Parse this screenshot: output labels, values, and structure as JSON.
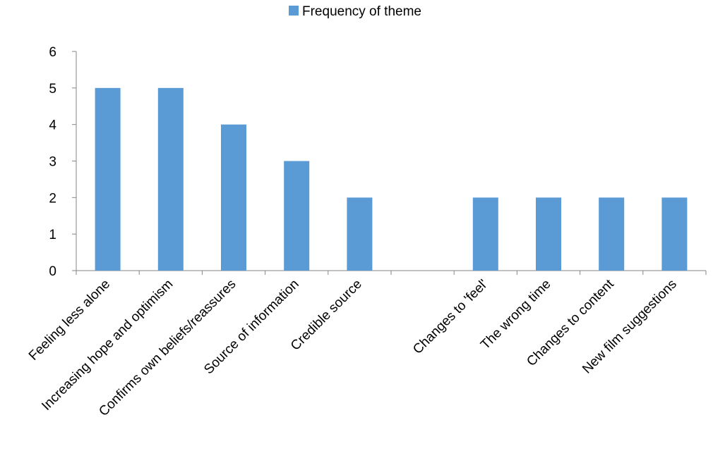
{
  "chart_data": {
    "type": "bar",
    "title": "",
    "xlabel": "",
    "ylabel": "",
    "categories": [
      "Feeling less alone",
      "Increasing hope and optimism",
      "Confirms own beliefs/reassures",
      "Source of information",
      "Credible source",
      "",
      "Changes to 'feel'",
      "The wrong time",
      "Changes to content",
      "New film suggestions"
    ],
    "series": [
      {
        "name": "Frequency of theme",
        "values": [
          5,
          5,
          4,
          3,
          2,
          null,
          2,
          2,
          2,
          2
        ],
        "color": "#5B9BD5"
      }
    ],
    "ylim": [
      0,
      6
    ],
    "yticks": [
      0,
      1,
      2,
      3,
      4,
      5,
      6
    ],
    "grid": false,
    "legend": {
      "position": "top"
    }
  }
}
